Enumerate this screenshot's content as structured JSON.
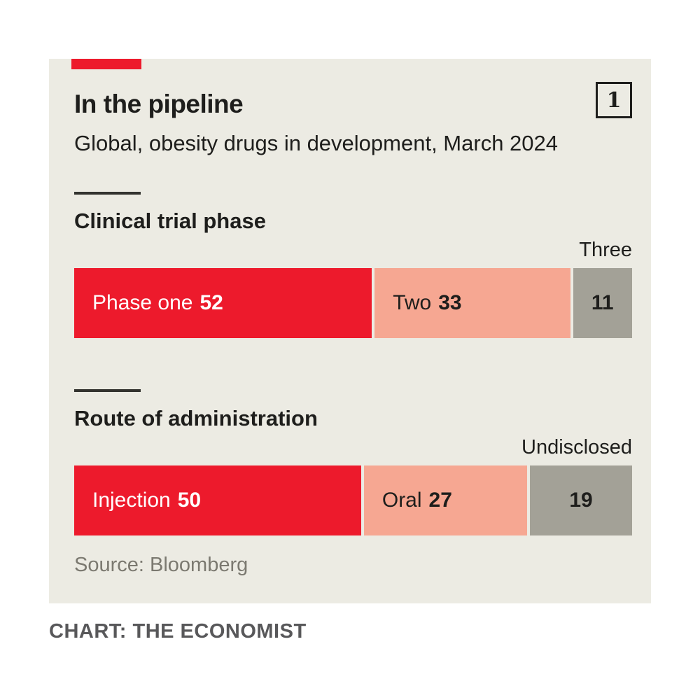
{
  "page": {
    "background": "#ffffff",
    "credit": "CHART: THE ECONOMIST"
  },
  "card": {
    "background": "#ecebe3",
    "accent_tab_color": "#ed1a2c",
    "figure_number": "1",
    "title": "In the pipeline",
    "subtitle": "Global, obesity drugs in development, March 2024",
    "source": "Source: Bloomberg"
  },
  "colors": {
    "red": "#ed1a2c",
    "salmon": "#f6a792",
    "gray": "#a3a197",
    "text_dark": "#1e1e1c",
    "text_on_red": "#ffffff",
    "source_gray": "#7b7970",
    "credit_gray": "#58585a"
  },
  "chart_data": [
    {
      "type": "bar",
      "orientation": "horizontal-stacked",
      "title": "Clinical trial phase",
      "total": 96,
      "xlim": [
        0,
        96
      ],
      "grid": false,
      "legend": "labels-inside-segments",
      "segments": [
        {
          "label": "Phase one",
          "value": 52,
          "color": "#ed1a2c",
          "text_color": "#ffffff",
          "label_position": "inside"
        },
        {
          "label": "Two",
          "value": 33,
          "color": "#f6a792",
          "text_color": "#1e1e1c",
          "label_position": "inside"
        },
        {
          "label": "Three",
          "value": 11,
          "color": "#a3a197",
          "text_color": "#1e1e1c",
          "label_position": "above-bar"
        }
      ]
    },
    {
      "type": "bar",
      "orientation": "horizontal-stacked",
      "title": "Route of administration",
      "total": 96,
      "xlim": [
        0,
        96
      ],
      "grid": false,
      "legend": "labels-inside-segments",
      "segments": [
        {
          "label": "Injection",
          "value": 50,
          "color": "#ed1a2c",
          "text_color": "#ffffff",
          "label_position": "inside"
        },
        {
          "label": "Oral",
          "value": 27,
          "color": "#f6a792",
          "text_color": "#1e1e1c",
          "label_position": "inside"
        },
        {
          "label": "Undisclosed",
          "value": 19,
          "color": "#a3a197",
          "text_color": "#1e1e1c",
          "label_position": "above-bar"
        }
      ]
    }
  ]
}
